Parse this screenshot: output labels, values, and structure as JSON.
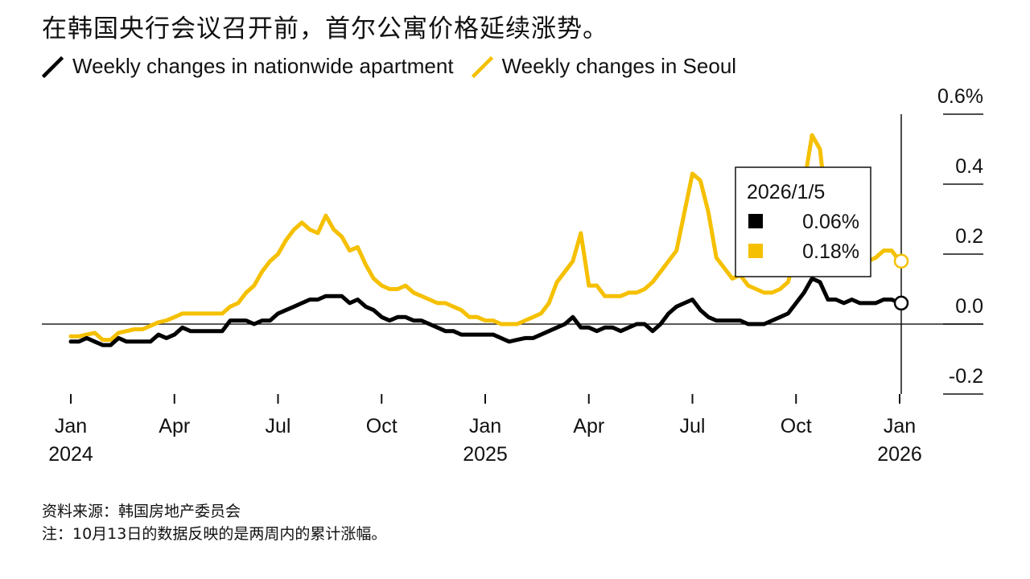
{
  "title": "在韩国央行会议召开前，首尔公寓价格延续涨势。",
  "footer": {
    "source": "资料来源：韩国房地产委员会",
    "note": "注：10月13日的数据反映的是两周内的累计涨幅。"
  },
  "tooltip": {
    "date": "2026/1/5",
    "rows": [
      {
        "label": "0.06%",
        "color": "#000000"
      },
      {
        "label": "0.18%",
        "color": "#f5c000"
      }
    ]
  },
  "chart_data": {
    "type": "line",
    "x_unit": "weeks since 2024-01-01",
    "ylim": [
      -0.2,
      0.6
    ],
    "y_ticks": [
      {
        "value": 0.6,
        "label": "0.6%"
      },
      {
        "value": 0.4,
        "label": "0.4"
      },
      {
        "value": 0.2,
        "label": "0.2"
      },
      {
        "value": 0.0,
        "label": "0.0"
      },
      {
        "value": -0.2,
        "label": "-0.2"
      }
    ],
    "x_ticks": [
      {
        "x": 0,
        "label": "Jan",
        "year": "2024"
      },
      {
        "x": 13,
        "label": "Apr",
        "year": ""
      },
      {
        "x": 26,
        "label": "Jul",
        "year": ""
      },
      {
        "x": 39,
        "label": "Oct",
        "year": ""
      },
      {
        "x": 52,
        "label": "Jan",
        "year": "2025"
      },
      {
        "x": 65,
        "label": "Apr",
        "year": ""
      },
      {
        "x": 78,
        "label": "Jul",
        "year": ""
      },
      {
        "x": 91,
        "label": "Oct",
        "year": ""
      },
      {
        "x": 104,
        "label": "Jan",
        "year": "2026"
      }
    ],
    "grid": false,
    "legend": "top-left",
    "series": [
      {
        "name": "Weekly changes in nationwide apartment",
        "color": "#000000",
        "values": [
          [
            0,
            -0.05
          ],
          [
            1,
            -0.05
          ],
          [
            2,
            -0.04
          ],
          [
            3,
            -0.05
          ],
          [
            4,
            -0.06
          ],
          [
            5,
            -0.06
          ],
          [
            6,
            -0.04
          ],
          [
            7,
            -0.05
          ],
          [
            8,
            -0.05
          ],
          [
            9,
            -0.05
          ],
          [
            10,
            -0.05
          ],
          [
            11,
            -0.03
          ],
          [
            12,
            -0.04
          ],
          [
            13,
            -0.03
          ],
          [
            14,
            -0.01
          ],
          [
            15,
            -0.02
          ],
          [
            16,
            -0.02
          ],
          [
            17,
            -0.02
          ],
          [
            18,
            -0.02
          ],
          [
            19,
            -0.02
          ],
          [
            20,
            0.01
          ],
          [
            21,
            0.01
          ],
          [
            22,
            0.01
          ],
          [
            23,
            0.0
          ],
          [
            24,
            0.01
          ],
          [
            25,
            0.01
          ],
          [
            26,
            0.03
          ],
          [
            27,
            0.04
          ],
          [
            28,
            0.05
          ],
          [
            29,
            0.06
          ],
          [
            30,
            0.07
          ],
          [
            31,
            0.07
          ],
          [
            32,
            0.08
          ],
          [
            33,
            0.08
          ],
          [
            34,
            0.08
          ],
          [
            35,
            0.06
          ],
          [
            36,
            0.07
          ],
          [
            37,
            0.05
          ],
          [
            38,
            0.04
          ],
          [
            39,
            0.02
          ],
          [
            40,
            0.01
          ],
          [
            41,
            0.02
          ],
          [
            42,
            0.02
          ],
          [
            43,
            0.01
          ],
          [
            44,
            0.01
          ],
          [
            45,
            0.0
          ],
          [
            46,
            -0.01
          ],
          [
            47,
            -0.02
          ],
          [
            48,
            -0.02
          ],
          [
            49,
            -0.03
          ],
          [
            50,
            -0.03
          ],
          [
            51,
            -0.03
          ],
          [
            52,
            -0.03
          ],
          [
            53,
            -0.03
          ],
          [
            54,
            -0.04
          ],
          [
            55,
            -0.05
          ],
          [
            56,
            -0.045
          ],
          [
            57,
            -0.04
          ],
          [
            58,
            -0.04
          ],
          [
            59,
            -0.03
          ],
          [
            60,
            -0.02
          ],
          [
            61,
            -0.01
          ],
          [
            62,
            0.0
          ],
          [
            63,
            0.02
          ],
          [
            64,
            -0.01
          ],
          [
            65,
            -0.01
          ],
          [
            66,
            -0.02
          ],
          [
            67,
            -0.01
          ],
          [
            68,
            -0.01
          ],
          [
            69,
            -0.02
          ],
          [
            70,
            -0.01
          ],
          [
            71,
            0.0
          ],
          [
            72,
            0.0
          ],
          [
            73,
            -0.02
          ],
          [
            74,
            0.0
          ],
          [
            75,
            0.03
          ],
          [
            76,
            0.05
          ],
          [
            77,
            0.06
          ],
          [
            78,
            0.07
          ],
          [
            79,
            0.04
          ],
          [
            80,
            0.02
          ],
          [
            81,
            0.01
          ],
          [
            82,
            0.01
          ],
          [
            83,
            0.01
          ],
          [
            84,
            0.01
          ],
          [
            85,
            0.0
          ],
          [
            86,
            0.0
          ],
          [
            87,
            0.0
          ],
          [
            88,
            0.01
          ],
          [
            89,
            0.02
          ],
          [
            90,
            0.03
          ],
          [
            91,
            0.06
          ],
          [
            92,
            0.09
          ],
          [
            93,
            0.13
          ],
          [
            94,
            0.12
          ],
          [
            95,
            0.07
          ],
          [
            96,
            0.07
          ],
          [
            97,
            0.06
          ],
          [
            98,
            0.07
          ],
          [
            99,
            0.06
          ],
          [
            100,
            0.06
          ],
          [
            101,
            0.06
          ],
          [
            102,
            0.07
          ],
          [
            103,
            0.07
          ],
          [
            104,
            0.06
          ]
        ]
      },
      {
        "name": "Weekly changes in Seoul",
        "color": "#f5c000",
        "values": [
          [
            0,
            -0.035
          ],
          [
            1,
            -0.035
          ],
          [
            2,
            -0.03
          ],
          [
            3,
            -0.025
          ],
          [
            4,
            -0.045
          ],
          [
            5,
            -0.045
          ],
          [
            6,
            -0.025
          ],
          [
            7,
            -0.02
          ],
          [
            8,
            -0.015
          ],
          [
            9,
            -0.015
          ],
          [
            10,
            -0.005
          ],
          [
            11,
            0.005
          ],
          [
            12,
            0.01
          ],
          [
            13,
            0.02
          ],
          [
            14,
            0.03
          ],
          [
            15,
            0.03
          ],
          [
            16,
            0.03
          ],
          [
            17,
            0.03
          ],
          [
            18,
            0.03
          ],
          [
            19,
            0.03
          ],
          [
            20,
            0.05
          ],
          [
            21,
            0.06
          ],
          [
            22,
            0.09
          ],
          [
            23,
            0.11
          ],
          [
            24,
            0.15
          ],
          [
            25,
            0.18
          ],
          [
            26,
            0.2
          ],
          [
            27,
            0.24
          ],
          [
            28,
            0.27
          ],
          [
            29,
            0.29
          ],
          [
            30,
            0.27
          ],
          [
            31,
            0.26
          ],
          [
            32,
            0.31
          ],
          [
            33,
            0.27
          ],
          [
            34,
            0.25
          ],
          [
            35,
            0.21
          ],
          [
            36,
            0.22
          ],
          [
            37,
            0.17
          ],
          [
            38,
            0.13
          ],
          [
            39,
            0.11
          ],
          [
            40,
            0.1
          ],
          [
            41,
            0.1
          ],
          [
            42,
            0.11
          ],
          [
            43,
            0.09
          ],
          [
            44,
            0.08
          ],
          [
            45,
            0.07
          ],
          [
            46,
            0.06
          ],
          [
            47,
            0.06
          ],
          [
            48,
            0.05
          ],
          [
            49,
            0.04
          ],
          [
            50,
            0.02
          ],
          [
            51,
            0.02
          ],
          [
            52,
            0.01
          ],
          [
            53,
            0.01
          ],
          [
            54,
            0.0
          ],
          [
            55,
            0.0
          ],
          [
            56,
            0.0
          ],
          [
            57,
            0.01
          ],
          [
            58,
            0.02
          ],
          [
            59,
            0.03
          ],
          [
            60,
            0.06
          ],
          [
            61,
            0.12
          ],
          [
            62,
            0.15
          ],
          [
            63,
            0.18
          ],
          [
            64,
            0.26
          ],
          [
            65,
            0.11
          ],
          [
            66,
            0.11
          ],
          [
            67,
            0.08
          ],
          [
            68,
            0.08
          ],
          [
            69,
            0.08
          ],
          [
            70,
            0.09
          ],
          [
            71,
            0.09
          ],
          [
            72,
            0.1
          ],
          [
            73,
            0.12
          ],
          [
            74,
            0.15
          ],
          [
            75,
            0.18
          ],
          [
            76,
            0.21
          ],
          [
            77,
            0.32
          ],
          [
            78,
            0.43
          ],
          [
            79,
            0.41
          ],
          [
            80,
            0.32
          ],
          [
            81,
            0.19
          ],
          [
            82,
            0.16
          ],
          [
            83,
            0.13
          ],
          [
            84,
            0.14
          ],
          [
            85,
            0.11
          ],
          [
            86,
            0.1
          ],
          [
            87,
            0.09
          ],
          [
            88,
            0.09
          ],
          [
            89,
            0.1
          ],
          [
            90,
            0.12
          ],
          [
            91,
            0.2
          ],
          [
            92,
            0.4
          ],
          [
            93,
            0.54
          ],
          [
            94,
            0.5
          ],
          [
            95,
            0.3
          ],
          [
            96,
            0.22
          ],
          [
            97,
            0.19
          ],
          [
            98,
            0.19
          ],
          [
            99,
            0.17
          ],
          [
            100,
            0.18
          ],
          [
            101,
            0.19
          ],
          [
            102,
            0.21
          ],
          [
            103,
            0.21
          ],
          [
            104,
            0.18
          ]
        ]
      }
    ]
  }
}
